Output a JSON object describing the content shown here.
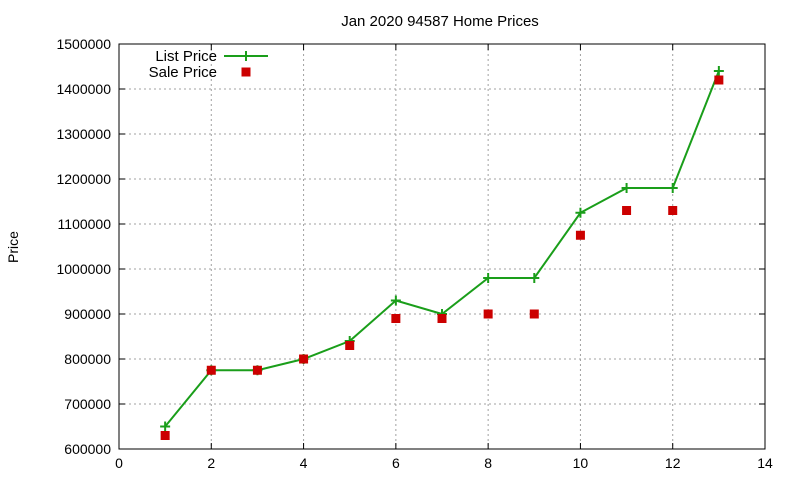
{
  "chart_data": {
    "type": "line",
    "title": "Jan 2020 94587 Home Prices",
    "xlabel": "",
    "ylabel": "Price",
    "xlim": [
      0,
      14
    ],
    "ylim": [
      600000,
      1500000
    ],
    "xticks": [
      "0",
      "2",
      "4",
      "6",
      "8",
      "10",
      "12",
      "14"
    ],
    "yticks": [
      "600000",
      "700000",
      "800000",
      "900000",
      "1000000",
      "1100000",
      "1200000",
      "1300000",
      "1400000",
      "1500000"
    ],
    "grid": true,
    "legend_position": "top-left",
    "series": [
      {
        "name": "List Price",
        "style": "line-with-plus-markers",
        "color": "#1a9e1a",
        "x": [
          1,
          2,
          3,
          4,
          5,
          6,
          7,
          8,
          9,
          10,
          11,
          12,
          13
        ],
        "y": [
          650000,
          775000,
          775000,
          800000,
          840000,
          930000,
          900000,
          980000,
          980000,
          1125000,
          1180000,
          1180000,
          1440000
        ]
      },
      {
        "name": "Sale Price",
        "style": "square-markers",
        "color": "#cc0000",
        "x": [
          1,
          2,
          3,
          4,
          5,
          6,
          7,
          8,
          9,
          10,
          11,
          12,
          13
        ],
        "y": [
          630000,
          775000,
          775000,
          800000,
          830000,
          890000,
          890000,
          900000,
          900000,
          1075000,
          1130000,
          1130000,
          1420000
        ]
      }
    ]
  }
}
